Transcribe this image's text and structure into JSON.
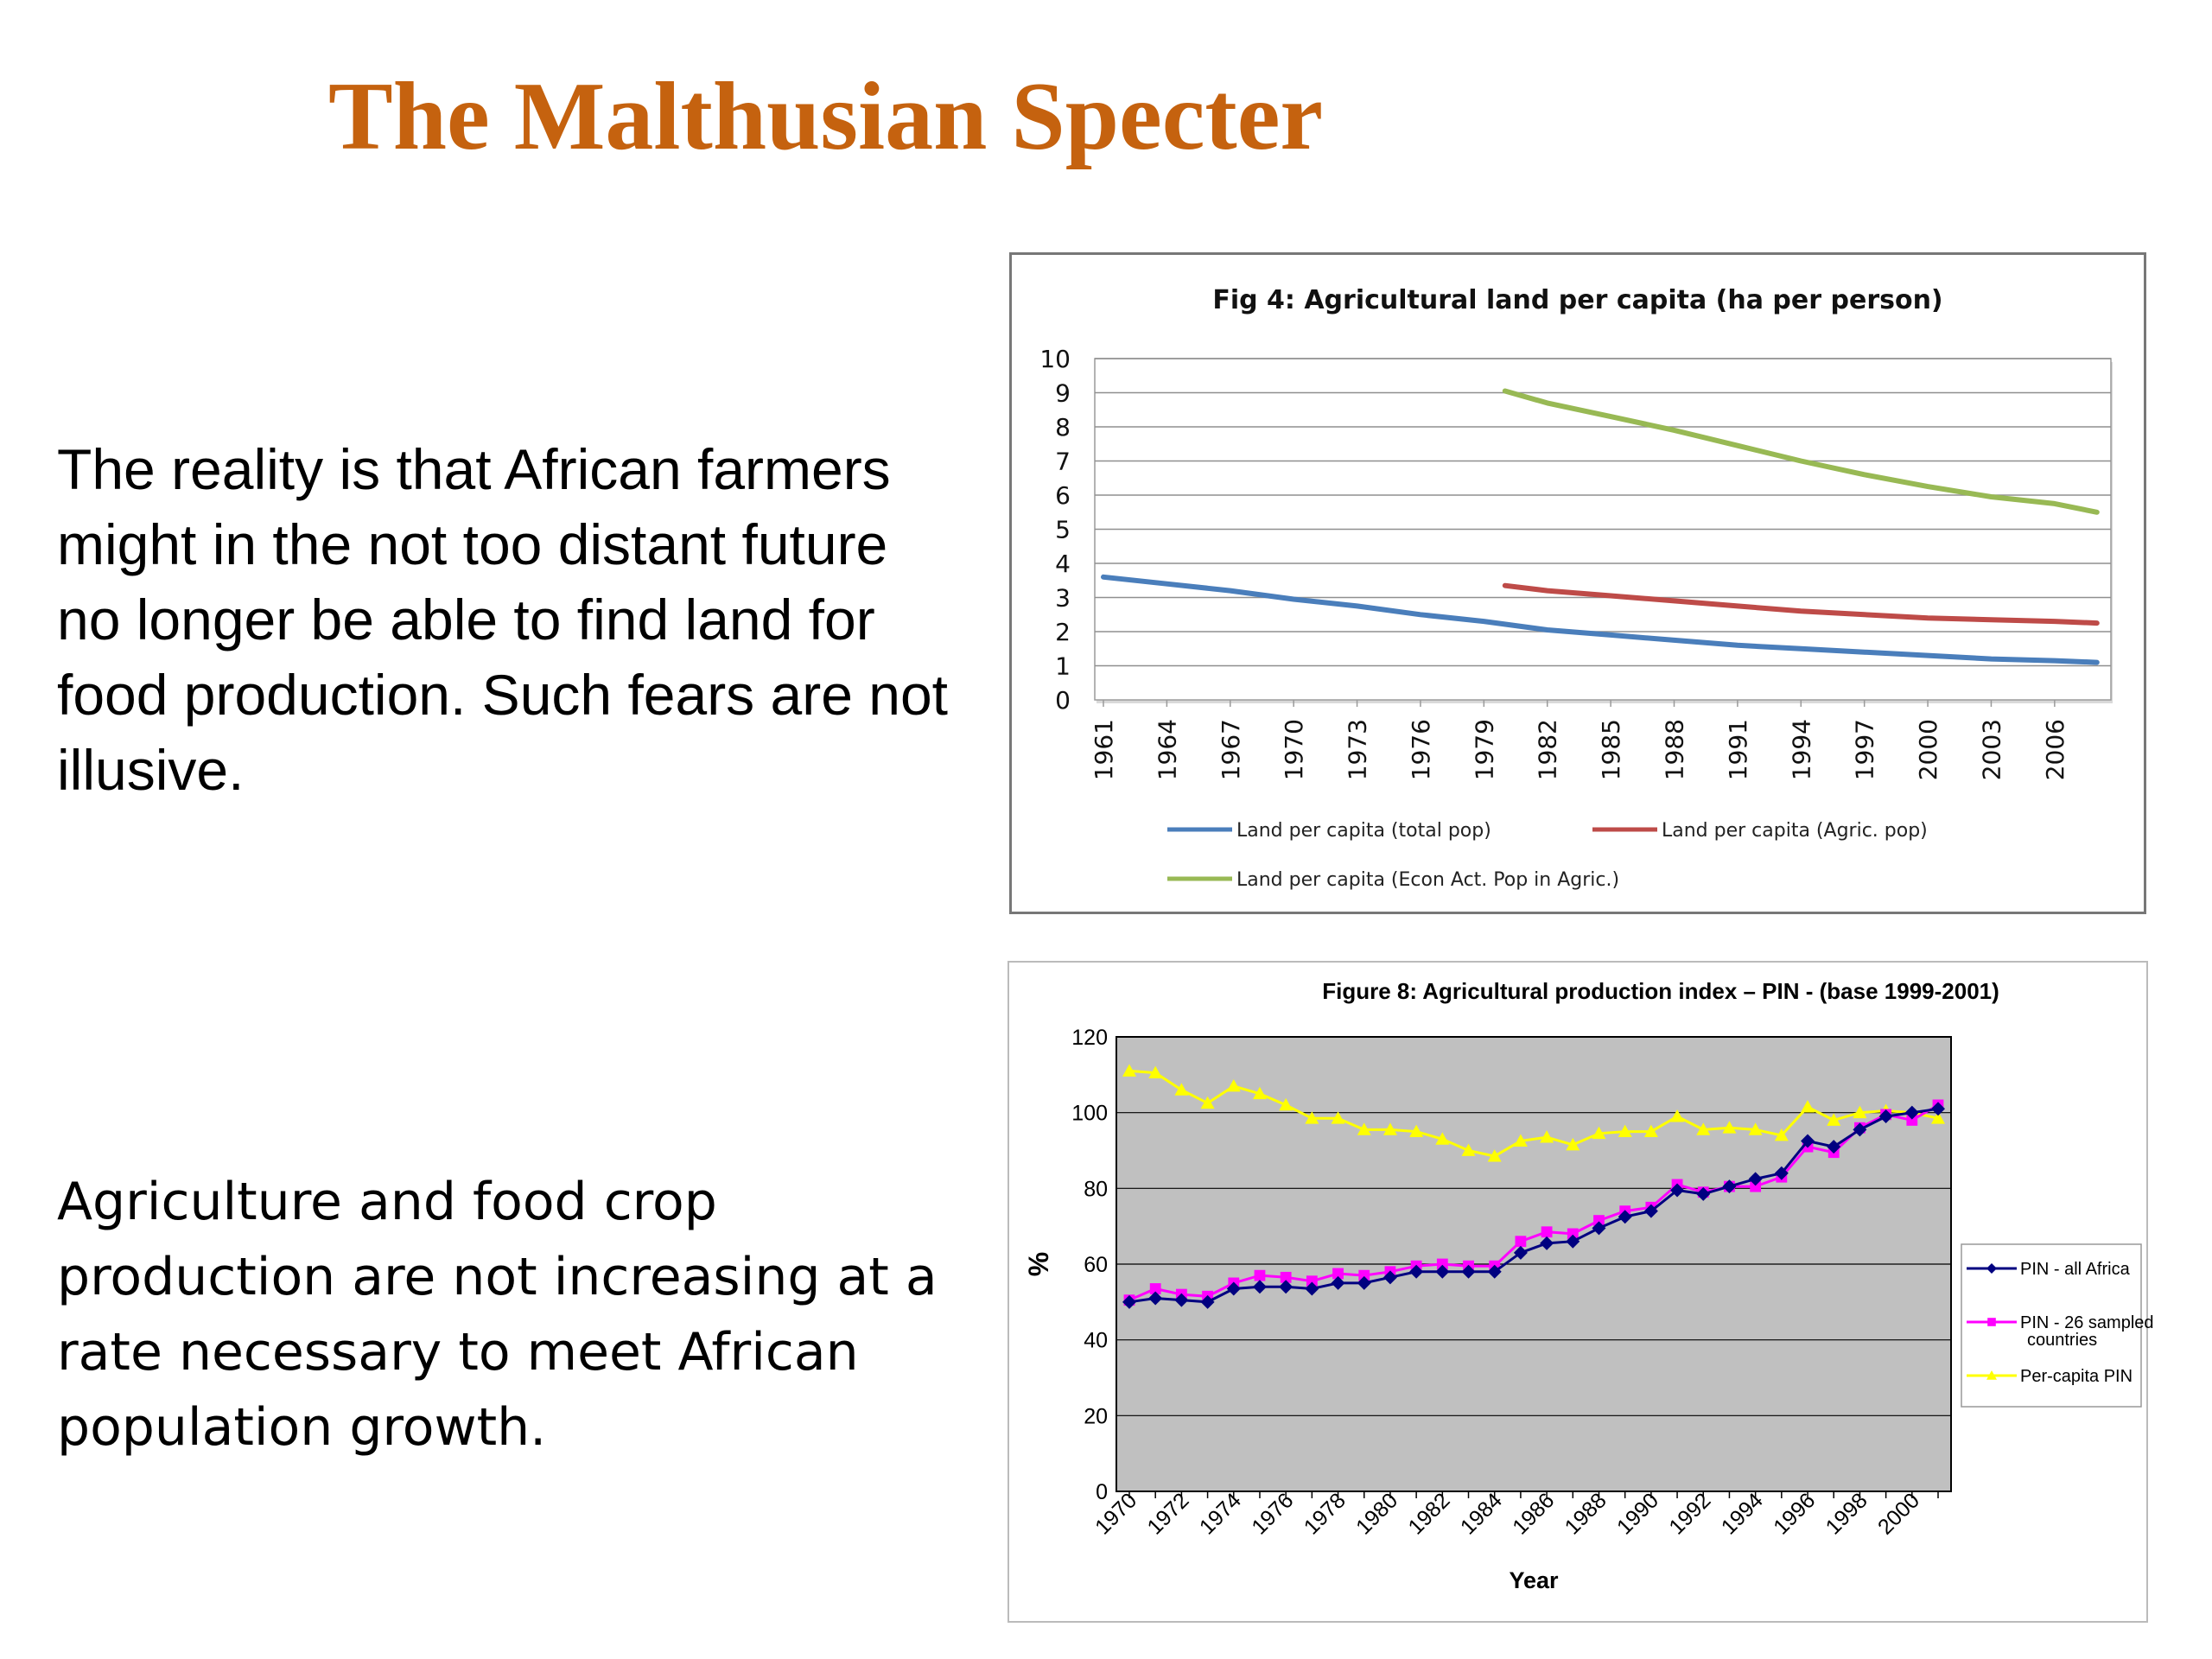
{
  "slide": {
    "title": "The Malthusian Specter",
    "paragraph1": "The reality is that African farmers might in the not too distant future no longer be able to find land for food production. Such fears are not illusive.",
    "paragraph2": "Agriculture and food crop production are not increasing at a rate necessary to meet African population growth."
  },
  "chart_data": [
    {
      "type": "line",
      "title": "Fig 4: Agricultural land per capita (ha per person)",
      "xlabel": "",
      "ylabel": "",
      "ylim": [
        0,
        10
      ],
      "yticks": [
        "0",
        "1",
        "2",
        "3",
        "4",
        "5",
        "6",
        "7",
        "8",
        "9",
        "10"
      ],
      "xtick_labels": [
        "1961",
        "1964",
        "1967",
        "1970",
        "1973",
        "1976",
        "1979",
        "1982",
        "1985",
        "1988",
        "1991",
        "1994",
        "1997",
        "2000",
        "2003",
        "2006"
      ],
      "grid": true,
      "legend_position": "bottom",
      "series": [
        {
          "name": "Land per capita (total pop)",
          "color": "#4a7ebb",
          "points": [
            [
              1961,
              3.6
            ],
            [
              1964,
              3.4
            ],
            [
              1967,
              3.2
            ],
            [
              1970,
              2.95
            ],
            [
              1973,
              2.75
            ],
            [
              1976,
              2.5
            ],
            [
              1979,
              2.3
            ],
            [
              1982,
              2.05
            ],
            [
              1985,
              1.9
            ],
            [
              1988,
              1.75
            ],
            [
              1991,
              1.6
            ],
            [
              1994,
              1.5
            ],
            [
              1997,
              1.4
            ],
            [
              2000,
              1.3
            ],
            [
              2003,
              1.2
            ],
            [
              2006,
              1.15
            ],
            [
              2008,
              1.1
            ]
          ]
        },
        {
          "name": "Land per capita (Agric. pop)",
          "color": "#be4b48",
          "points": [
            [
              1980,
              3.35
            ],
            [
              1982,
              3.2
            ],
            [
              1985,
              3.05
            ],
            [
              1988,
              2.9
            ],
            [
              1991,
              2.75
            ],
            [
              1994,
              2.6
            ],
            [
              1997,
              2.5
            ],
            [
              2000,
              2.4
            ],
            [
              2003,
              2.35
            ],
            [
              2006,
              2.3
            ],
            [
              2008,
              2.25
            ]
          ]
        },
        {
          "name": "Land per capita (Econ Act. Pop in Agric.)",
          "color": "#98b954",
          "points": [
            [
              1980,
              9.05
            ],
            [
              1982,
              8.7
            ],
            [
              1985,
              8.3
            ],
            [
              1988,
              7.9
            ],
            [
              1991,
              7.45
            ],
            [
              1994,
              7.0
            ],
            [
              1997,
              6.6
            ],
            [
              2000,
              6.25
            ],
            [
              2003,
              5.95
            ],
            [
              2006,
              5.75
            ],
            [
              2008,
              5.5
            ]
          ]
        }
      ]
    },
    {
      "type": "line",
      "title": "Figure 8: Agricultural production index – PIN - (base 1999-2001)",
      "xlabel": "Year",
      "ylabel": "%",
      "ylim": [
        0,
        120
      ],
      "yticks": [
        "0",
        "20",
        "40",
        "60",
        "80",
        "100",
        "120"
      ],
      "xtick_labels": [
        "1970",
        "1972",
        "1974",
        "1976",
        "1978",
        "1980",
        "1982",
        "1984",
        "1986",
        "1988",
        "1990",
        "1992",
        "1994",
        "1996",
        "1998",
        "2000"
      ],
      "grid": true,
      "legend_position": "right",
      "years": [
        1970,
        1971,
        1972,
        1973,
        1974,
        1975,
        1976,
        1977,
        1978,
        1979,
        1980,
        1981,
        1982,
        1983,
        1984,
        1985,
        1986,
        1987,
        1988,
        1989,
        1990,
        1991,
        1992,
        1993,
        1994,
        1995,
        1996,
        1997,
        1998,
        1999,
        2000,
        2001
      ],
      "series": [
        {
          "name": "PIN - all Africa",
          "color": "#000080",
          "marker": "diamond",
          "values": [
            50,
            51,
            50.5,
            50,
            53.5,
            54,
            54,
            53.5,
            55,
            55,
            56.5,
            58,
            58,
            58,
            58,
            63,
            65.5,
            66,
            69.5,
            72.5,
            74,
            79.5,
            78.5,
            80.5,
            82.5,
            84,
            92.5,
            91,
            95.5,
            99,
            100,
            101
          ]
        },
        {
          "name": "PIN - 26 sampled countries",
          "color": "#ff00ff",
          "marker": "square",
          "values": [
            50.5,
            53.5,
            52,
            51.5,
            55,
            57,
            56.5,
            55.5,
            57.5,
            57,
            58,
            59.5,
            60,
            59.5,
            59.5,
            66,
            68.5,
            68,
            71.5,
            74,
            75,
            81,
            79,
            80.5,
            80.5,
            83,
            91,
            89.5,
            96,
            99.5,
            98,
            102
          ]
        },
        {
          "name": "Per-capita PIN",
          "color": "#ffff00",
          "marker": "triangle",
          "values": [
            111,
            110.5,
            106,
            102.5,
            107,
            105,
            102,
            98.5,
            98.5,
            95.5,
            95.5,
            95,
            93,
            90,
            88.5,
            92.5,
            93.5,
            91.5,
            94.5,
            95,
            95,
            99,
            95.5,
            96,
            95.5,
            94,
            101.5,
            98,
            100,
            100.5,
            100,
            98.5
          ]
        }
      ]
    }
  ]
}
